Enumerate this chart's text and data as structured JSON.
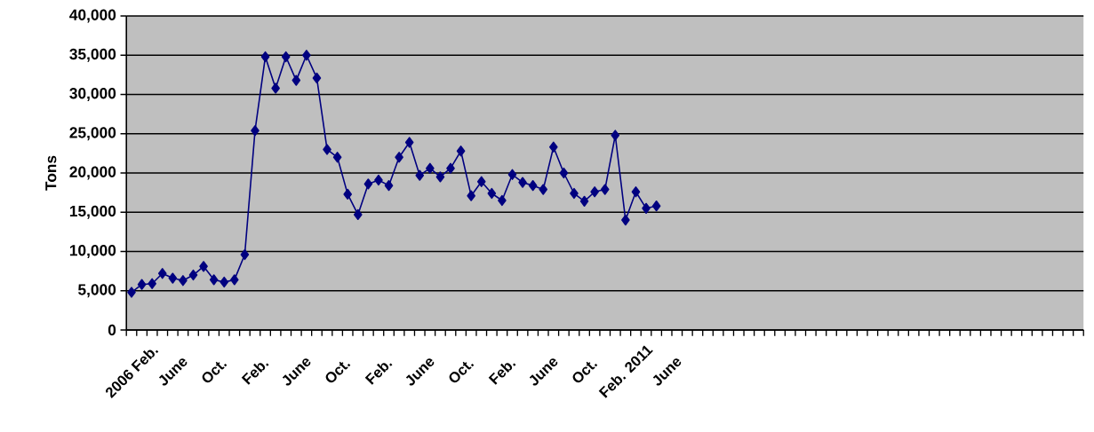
{
  "chart_data": {
    "type": "line",
    "ylabel": "Tons",
    "categories": [
      "2006 Feb.",
      null,
      null,
      null,
      "June",
      null,
      null,
      null,
      "Oct.",
      null,
      null,
      null,
      "Feb.",
      null,
      null,
      null,
      "June",
      null,
      null,
      null,
      "Oct.",
      null,
      null,
      null,
      "Feb.",
      null,
      null,
      null,
      "June",
      null,
      null,
      null,
      "Oct.",
      null,
      null,
      null,
      "Feb.",
      null,
      null,
      null,
      "June",
      null,
      null,
      null,
      "Oct.",
      null,
      null,
      null,
      "Feb. 2011",
      null,
      null,
      null,
      "June",
      null,
      null,
      null,
      null,
      null,
      null,
      null,
      null,
      null,
      null,
      null,
      null,
      null,
      null,
      null,
      null,
      null,
      null,
      null,
      null,
      null,
      null,
      null,
      null,
      null,
      null,
      null,
      null,
      null,
      null,
      null,
      null,
      null,
      null,
      null,
      null,
      null,
      null,
      null,
      null
    ],
    "series": [
      {
        "color": "#000080",
        "values": [
          4800,
          5800,
          5900,
          7200,
          6600,
          6300,
          7000,
          8100,
          6400,
          6100,
          6400,
          9600,
          25400,
          34800,
          30800,
          34800,
          31800,
          35000,
          32100,
          23000,
          22000,
          17300,
          14700,
          18600,
          19100,
          18400,
          22000,
          23900,
          19700,
          20600,
          19500,
          20600,
          22800,
          17100,
          18900,
          17400,
          16500,
          19800,
          18800,
          18400,
          17900,
          23300,
          20000,
          17400,
          16400,
          17600,
          17900,
          24800,
          14000,
          17600,
          15500,
          15800,
          null,
          null,
          null,
          null,
          null,
          null,
          null,
          null,
          null,
          null,
          null,
          null,
          null,
          null,
          null,
          null,
          null,
          null,
          null,
          null,
          null,
          null,
          null,
          null,
          null,
          null,
          null,
          null,
          null,
          null,
          null,
          null,
          null,
          null,
          null,
          null,
          null,
          null,
          null,
          null,
          null
        ]
      }
    ],
    "ylim": [
      0,
      40000
    ],
    "yticks": [
      {
        "value": 0,
        "label": "0"
      },
      {
        "value": 5000,
        "label": "5,000"
      },
      {
        "value": 10000,
        "label": "10,000"
      },
      {
        "value": 15000,
        "label": "15,000"
      },
      {
        "value": 20000,
        "label": "20,000"
      },
      {
        "value": 25000,
        "label": "25,000"
      },
      {
        "value": 30000,
        "label": "30,000"
      },
      {
        "value": 35000,
        "label": "35,000"
      },
      {
        "value": 40000,
        "label": "40,000"
      }
    ],
    "grid": "y",
    "marker": "diamond",
    "line_style": "solid"
  }
}
